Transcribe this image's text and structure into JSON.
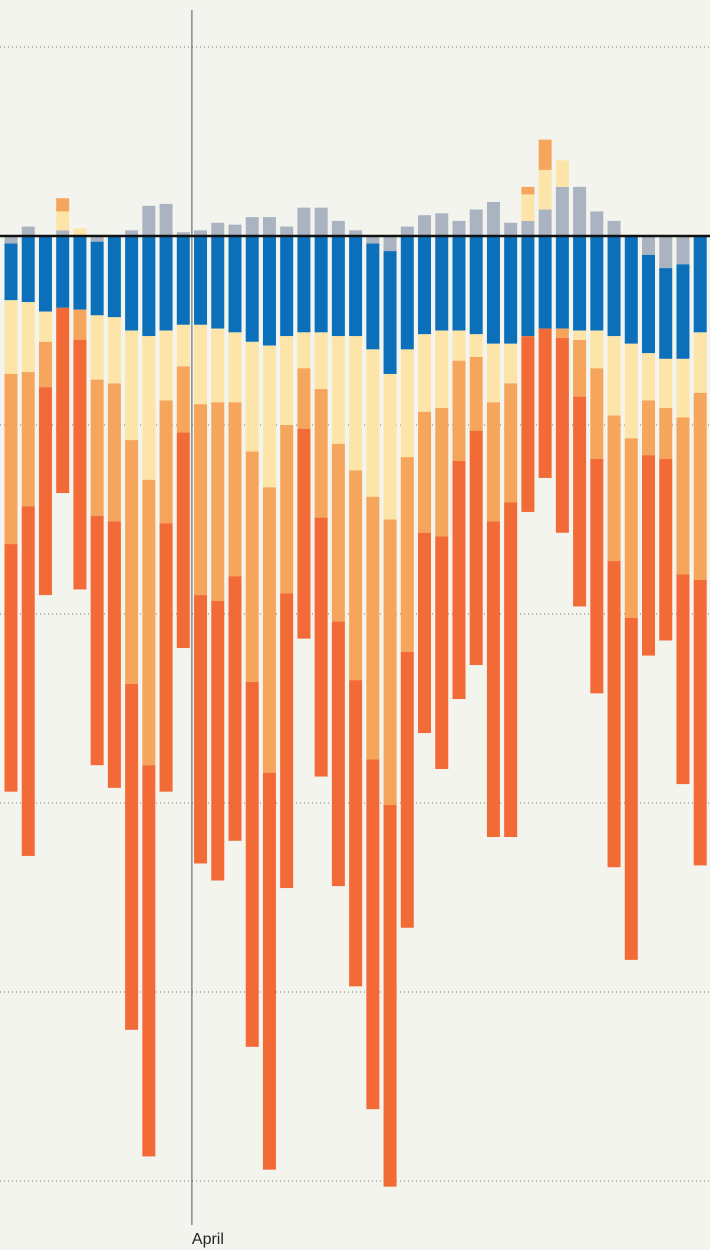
{
  "chart_data": {
    "type": "stacked_bar",
    "categories": [
      null,
      null,
      null,
      null,
      null,
      null,
      null,
      null,
      null,
      null,
      null,
      "April",
      null,
      null,
      null,
      null,
      null,
      null,
      null,
      null,
      null,
      null,
      null,
      null,
      null,
      null,
      null,
      null,
      null,
      null,
      null,
      null,
      null,
      null,
      null,
      null,
      null,
      null,
      null,
      null,
      null
    ],
    "series": [
      {
        "name": null,
        "color": "#aab4c0",
        "values": [
          -0.4,
          0.5,
          0,
          0.3,
          0,
          -0.3,
          0,
          0.3,
          1.6,
          1.7,
          0.2,
          0.3,
          0.7,
          0.6,
          1.0,
          1.0,
          0.5,
          1.5,
          1.5,
          0.8,
          0.3,
          -0.4,
          -0.8,
          0.5,
          1.1,
          1.2,
          0.8,
          1.4,
          1.8,
          0.7,
          0.8,
          1.4,
          2.6,
          2.6,
          1.3,
          0.8,
          0,
          -1.0,
          -1.7,
          -1.5,
          0
        ]
      },
      {
        "name": null,
        "color": "#0b6fba",
        "values": [
          -3.0,
          -3.5,
          -4.0,
          -3.8,
          -3.9,
          -3.9,
          -4.3,
          -5.0,
          -5.3,
          -5.0,
          -4.7,
          -4.7,
          -4.9,
          -5.1,
          -5.6,
          -5.8,
          -5.3,
          -5.1,
          -5.1,
          -5.3,
          -5.3,
          -5.6,
          -6.5,
          -6.0,
          -5.2,
          -5.0,
          -5.0,
          -5.2,
          -5.7,
          -5.7,
          -5.3,
          -4.9,
          -4.9,
          -5.0,
          -5.0,
          -5.3,
          -5.7,
          -5.2,
          -4.8,
          -5.0,
          -5.1
        ]
      },
      {
        "name": null,
        "color": "#fde4a8",
        "values": [
          -3.9,
          -3.7,
          -1.6,
          1.0,
          0.4,
          -3.4,
          -3.5,
          -5.8,
          -7.6,
          -3.7,
          -2.2,
          -4.2,
          -3.9,
          -3.7,
          -5.8,
          -7.5,
          -4.7,
          -1.9,
          -3.0,
          -5.7,
          -7.1,
          -7.8,
          -7.7,
          -5.7,
          -4.1,
          -4.1,
          -1.6,
          -1.2,
          -3.1,
          -2.1,
          1.4,
          2.1,
          1.4,
          -0.5,
          -2.0,
          -4.2,
          -5.0,
          -2.5,
          -2.6,
          -3.1,
          -3.2
        ]
      },
      {
        "name": null,
        "color": "#f6a65c",
        "values": [
          -9.0,
          -7.1,
          -2.4,
          0.7,
          -1.6,
          -7.2,
          -7.3,
          -12.9,
          -15.1,
          -6.5,
          -3.5,
          -10.1,
          -10.5,
          -9.2,
          -12.2,
          -15.1,
          -8.9,
          -3.2,
          -6.8,
          -9.4,
          -11.1,
          -13.9,
          -15.1,
          -10.3,
          -6.4,
          -6.8,
          -5.3,
          -3.9,
          -6.3,
          -6.3,
          0.4,
          1.6,
          -0.5,
          -3.0,
          -4.8,
          -7.7,
          -9.5,
          -2.9,
          -2.7,
          -8.3,
          -9.9
        ]
      },
      {
        "name": null,
        "color": "#f26a36",
        "values": [
          -13.1,
          -18.5,
          -11.0,
          -9.8,
          -13.2,
          -13.2,
          -14.1,
          -18.3,
          -20.7,
          -14.2,
          -11.4,
          -14.2,
          -14.8,
          -14.0,
          -19.3,
          -21.0,
          -15.6,
          -11.1,
          -13.7,
          -14.0,
          -16.2,
          -18.5,
          -20.2,
          -14.6,
          -10.6,
          -12.3,
          -12.6,
          -12.4,
          -16.7,
          -17.7,
          -9.3,
          -7.9,
          -10.3,
          -11.1,
          -12.4,
          -16.2,
          -18.1,
          -10.6,
          -9.6,
          -11.1,
          -15.1
        ]
      }
    ],
    "ylim": [
      -53.7,
      12.5
    ],
    "yticks": [
      10,
      0,
      -10,
      -20,
      -30,
      -40,
      -50
    ],
    "grid": true
  }
}
